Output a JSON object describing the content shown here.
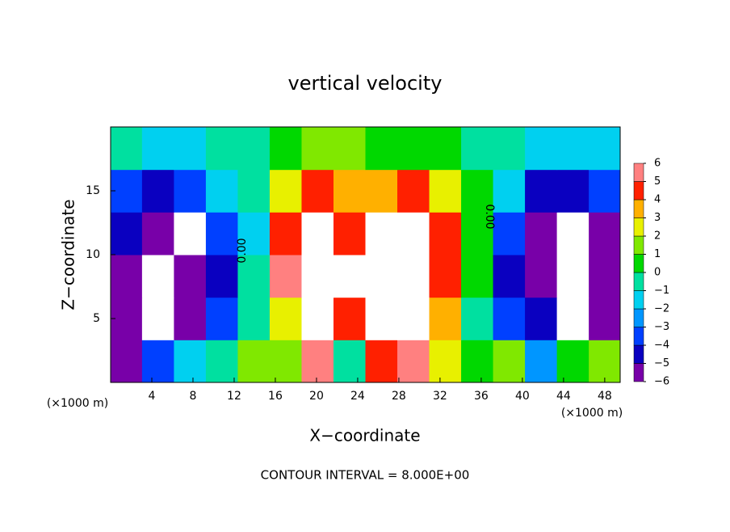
{
  "chart_data": {
    "type": "contour",
    "title": "vertical velocity",
    "x_label": "X−coordinate",
    "y_label": "Z−coordinate",
    "x_unit": "(×1000 m)",
    "x_unit_right": "(×1000 m)",
    "footer": "CONTOUR INTERVAL = 8.000E+00",
    "contour_labels": [
      "0.00",
      "0.00"
    ],
    "xlim": [
      0,
      49.5
    ],
    "ylim": [
      0,
      20
    ],
    "xticks": [
      4,
      8,
      12,
      16,
      20,
      24,
      28,
      32,
      36,
      40,
      44,
      48
    ],
    "yticks": [
      5,
      10,
      15
    ],
    "x": [
      1.5,
      4.6,
      7.7,
      10.8,
      13.9,
      17,
      20.1,
      23.2,
      26.3,
      29.4,
      32.5,
      35.6,
      38.7,
      41.8,
      44.9,
      48
    ],
    "y": [
      1.67,
      5,
      8.33,
      11.67,
      15,
      18.33
    ],
    "z": [
      [
        -5,
        -3,
        -1,
        0,
        2,
        2,
        6,
        0,
        5,
        6,
        3,
        1,
        2,
        -2,
        1,
        2
      ],
      [
        -6,
        -7,
        -5,
        -3,
        0,
        3,
        7,
        5,
        7,
        7,
        4,
        0,
        -3,
        -4,
        -7,
        -5
      ],
      [
        -5,
        -7,
        -6,
        -4,
        0,
        6,
        7,
        7,
        7,
        7,
        5,
        1,
        -4,
        -5,
        -7,
        -6
      ],
      [
        -4,
        -5,
        -7,
        -3,
        -1,
        5,
        7,
        5,
        7,
        7,
        5,
        1,
        -3,
        -5,
        -7,
        -5
      ],
      [
        -3,
        -4,
        -3,
        -1,
        0,
        3,
        5,
        4,
        4,
        5,
        3,
        1,
        -1,
        -4,
        -4,
        -3
      ],
      [
        0,
        -1,
        -1,
        0,
        0,
        1,
        2,
        2,
        1,
        1,
        1,
        0,
        0,
        -1,
        -1,
        -1
      ]
    ],
    "colorbar": {
      "ticks": [
        {
          "value": -6,
          "label": "−6"
        },
        {
          "value": -5,
          "label": "−5"
        },
        {
          "value": -4,
          "label": "−4"
        },
        {
          "value": -3,
          "label": "−3"
        },
        {
          "value": -2,
          "label": "−2"
        },
        {
          "value": -1,
          "label": "−1"
        },
        0,
        1,
        2,
        3,
        4,
        5,
        6
      ],
      "colors": [
        "#7800a8",
        "#0a00c0",
        "#0040ff",
        "#0096ff",
        "#00d0f0",
        "#00e0a0",
        "#00d800",
        "#80e800",
        "#e8f000",
        "#ffb000",
        "#ff2000",
        "#ff8080"
      ]
    }
  }
}
